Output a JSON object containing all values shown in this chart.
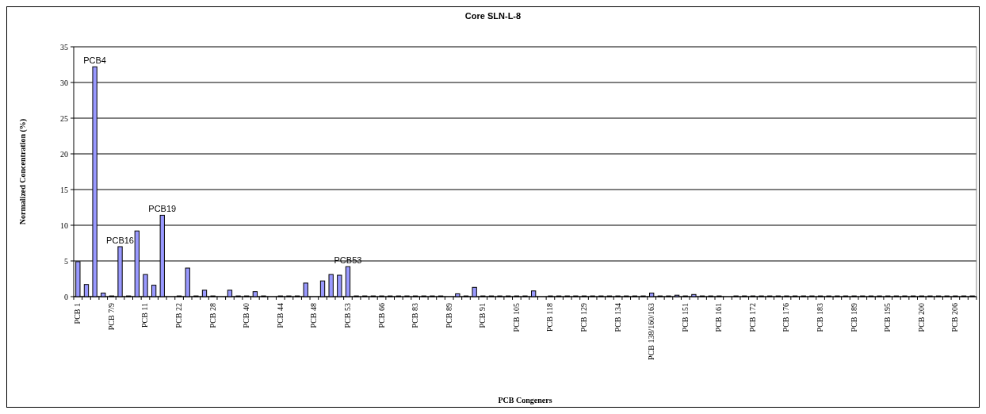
{
  "chart_data": {
    "type": "bar",
    "title": "Core SLN-L-8",
    "xlabel": "PCB Congeners",
    "ylabel": "Normalized  Concentration (%)",
    "categories": [
      "PCB 1",
      null,
      null,
      null,
      "PCB 7/9",
      null,
      null,
      null,
      "PCB 11",
      null,
      null,
      null,
      "PCB 22",
      null,
      null,
      null,
      "PCB 28",
      null,
      null,
      null,
      "PCB 40",
      null,
      null,
      null,
      "PCB 44",
      null,
      null,
      null,
      "PCB 48",
      null,
      null,
      null,
      "PCB 53",
      null,
      null,
      null,
      "PCB 66",
      null,
      null,
      null,
      "PCB 83",
      null,
      null,
      null,
      "PCB 89",
      null,
      null,
      null,
      "PCB 91",
      null,
      null,
      null,
      "PCB 105",
      null,
      null,
      null,
      "PCB 118",
      null,
      null,
      null,
      "PCB 129",
      null,
      null,
      null,
      "PCB 134",
      null,
      null,
      null,
      "PCB 138/160/163",
      null,
      null,
      null,
      "PCB 151",
      null,
      null,
      null,
      "PCB 161",
      null,
      null,
      null,
      "PCB 172",
      null,
      null,
      null,
      "PCB 176",
      null,
      null,
      null,
      "PCB 183",
      null,
      null,
      null,
      "PCB 189",
      null,
      null,
      null,
      "PCB 195",
      null,
      null,
      null,
      "PCB 200",
      null,
      null,
      null,
      "PCB 206",
      null,
      null
    ],
    "values": [
      4.9,
      1.7,
      32.2,
      0.5,
      0.1,
      7.0,
      0.1,
      9.2,
      3.1,
      1.6,
      11.4,
      null,
      0.1,
      4.0,
      0.1,
      0.9,
      0.1,
      null,
      0.9,
      0.1,
      0.1,
      0.7,
      0.1,
      null,
      0.1,
      0.1,
      0.1,
      1.9,
      null,
      2.2,
      3.1,
      3.0,
      4.2,
      0.1,
      0.1,
      0.1,
      0.1,
      0.1,
      0.1,
      0.1,
      0.1,
      0.1,
      0.1,
      0.1,
      null,
      0.4,
      0.1,
      1.3,
      0.1,
      0.1,
      0.1,
      0.1,
      0.1,
      0.1,
      0.8,
      null,
      0.1,
      0.1,
      0.1,
      0.1,
      0.1,
      0.1,
      0.1,
      0.1,
      0.1,
      0.1,
      0.1,
      0.1,
      0.5,
      0.1,
      0.1,
      0.2,
      0.1,
      0.3,
      0.1,
      0.1,
      0.1,
      null,
      0.1,
      0.1,
      0.1,
      0.1,
      0.1,
      0.1,
      0.1,
      0.1,
      0.1,
      0.1,
      0.1,
      0.1,
      0.1,
      0.1,
      0.1,
      0.1,
      0.1,
      0.1,
      0.1,
      0.1,
      0.1,
      0.1,
      0.1,
      0.1,
      0.1,
      0.1,
      0.1,
      0.1,
      0.1
    ],
    "value_labels": [
      null,
      null,
      "PCB4",
      null,
      null,
      "PCB16",
      null,
      null,
      null,
      null,
      "PCB19",
      null,
      null,
      null,
      null,
      null,
      null,
      null,
      null,
      null,
      null,
      null,
      null,
      null,
      null,
      null,
      null,
      null,
      null,
      null,
      null,
      null,
      "PCB53",
      null,
      null,
      null,
      null,
      null,
      null,
      null,
      null,
      null,
      null,
      null,
      null,
      null,
      null,
      null,
      null,
      null,
      null,
      null,
      null,
      null,
      null,
      null,
      null,
      null,
      null,
      null,
      null,
      null,
      null,
      null,
      null,
      null,
      null,
      null,
      null,
      null,
      null,
      null,
      null,
      null,
      null,
      null,
      null,
      null,
      null,
      null,
      null,
      null,
      null,
      null,
      null,
      null,
      null,
      null,
      null,
      null,
      null,
      null,
      null,
      null,
      null,
      null,
      null,
      null,
      null,
      null,
      null,
      null,
      null,
      null,
      null,
      null,
      null
    ],
    "color": "#9999ff",
    "ylim": [
      0,
      35
    ],
    "yticks": [
      0,
      5,
      10,
      15,
      20,
      25,
      30,
      35
    ],
    "grid": "y"
  }
}
